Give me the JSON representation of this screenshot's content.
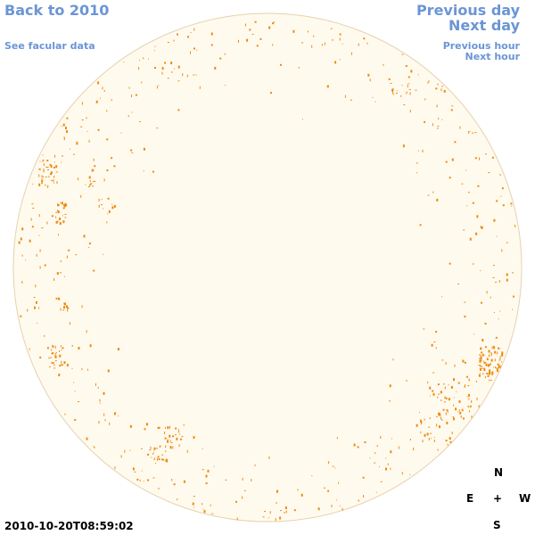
{
  "nav": {
    "back_label": "Back to 2010",
    "facular_label": "See facular data",
    "prev_day_label": "Previous day",
    "next_day_label": "Next day",
    "prev_hour_label": "Previous hour",
    "next_hour_label": "Next hour"
  },
  "compass": {
    "north": "N",
    "east": "E",
    "center": "+",
    "west": "W",
    "south": "S"
  },
  "timestamp": "2010-10-20T08:59:02",
  "colors": {
    "link": "#6b95d6",
    "disk_fill": "#fffaee",
    "disk_edge": "#e6d2ae",
    "feature": "#ee8a10"
  }
}
